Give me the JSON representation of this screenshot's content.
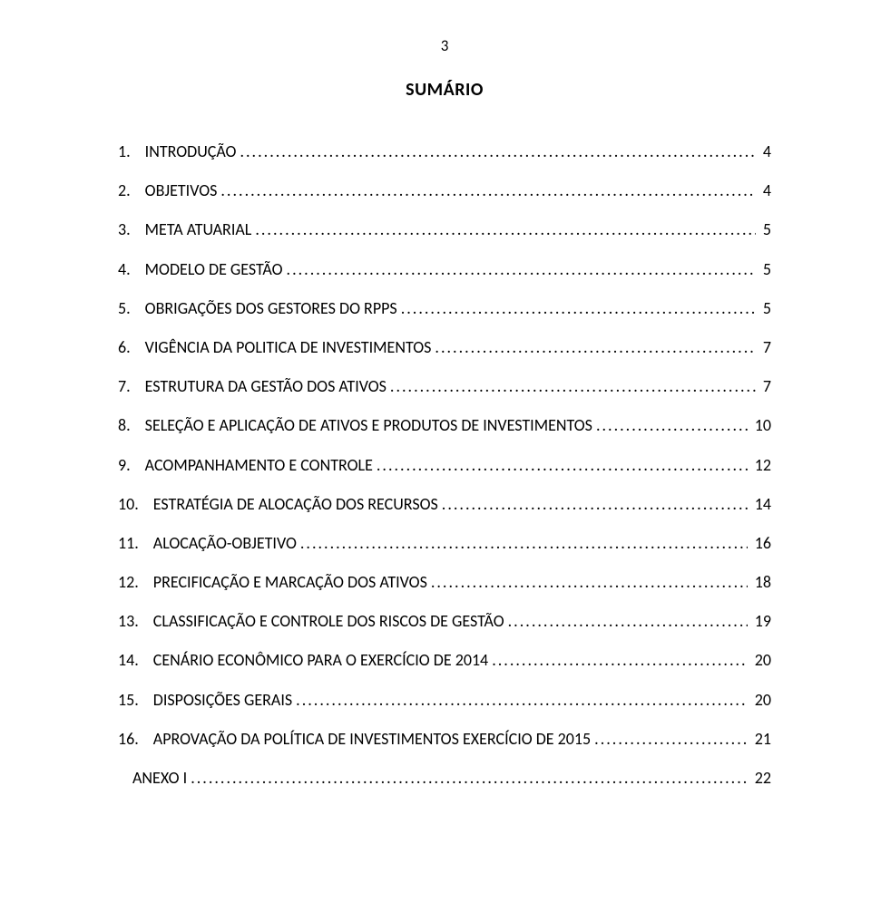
{
  "page_number": "3",
  "title": "SUMÁRIO",
  "dots": ".........................................................................................................................................................................................................................",
  "colors": {
    "background": "#ffffff",
    "text": "#000000"
  },
  "typography": {
    "family": "Calibri",
    "title_fontsize_pt": 15,
    "title_weight": "bold",
    "entry_fontsize_pt": 14
  },
  "toc": [
    {
      "num": "1.",
      "label": "INTRODUÇÃO",
      "page": "4"
    },
    {
      "num": "2.",
      "label": "OBJETIVOS",
      "page": "4"
    },
    {
      "num": "3.",
      "label": "META ATUARIAL",
      "page": "5"
    },
    {
      "num": "4.",
      "label": "MODELO DE GESTÃO",
      "page": "5"
    },
    {
      "num": "5.",
      "label": "OBRIGAÇÕES DOS GESTORES DO RPPS",
      "page": "5"
    },
    {
      "num": "6.",
      "label": "VIGÊNCIA DA POLITICA DE INVESTIMENTOS",
      "page": "7"
    },
    {
      "num": "7.",
      "label": "ESTRUTURA DA GESTÃO DOS ATIVOS",
      "page": "7"
    },
    {
      "num": "8.",
      "label": "SELEÇÃO E APLICAÇÃO DE ATIVOS E PRODUTOS DE INVESTIMENTOS",
      "page": "10"
    },
    {
      "num": "9.",
      "label": "ACOMPANHAMENTO E CONTROLE",
      "page": "12"
    },
    {
      "num": "10.",
      "label": "ESTRATÉGIA DE ALOCAÇÃO DOS RECURSOS",
      "page": "14"
    },
    {
      "num": "11.",
      "label": "ALOCAÇÃO-OBJETIVO",
      "page": "16"
    },
    {
      "num": "12.",
      "label": "PRECIFICAÇÃO E MARCAÇÃO DOS ATIVOS",
      "page": "18"
    },
    {
      "num": "13.",
      "label": "CLASSIFICAÇÃO E CONTROLE DOS RISCOS DE GESTÃO",
      "page": "19"
    },
    {
      "num": "14.",
      "label": "CENÁRIO ECONÔMICO PARA O EXERCÍCIO DE 2014",
      "page": "20"
    },
    {
      "num": "15.",
      "label": "DISPOSIÇÕES GERAIS",
      "page": "20"
    },
    {
      "num": "16.",
      "label": "APROVAÇÃO DA POLÍTICA DE INVESTIMENTOS EXERCÍCIO DE 2015",
      "page": "21"
    },
    {
      "num": "",
      "label": "ANEXO I",
      "page": "22"
    }
  ]
}
